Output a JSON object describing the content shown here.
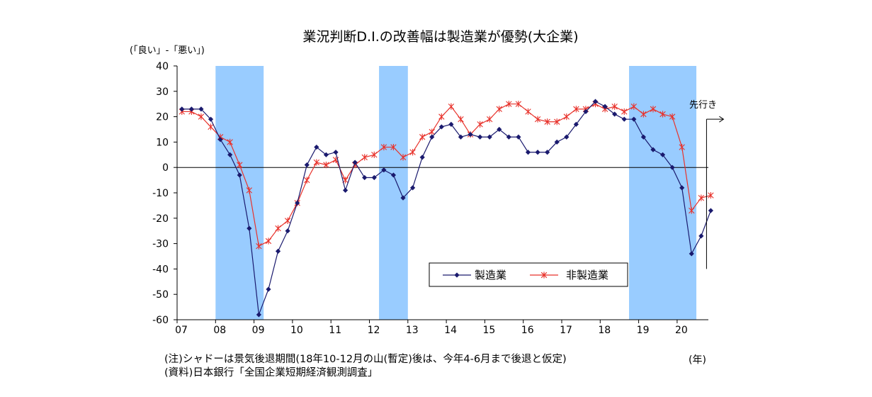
{
  "chart_data": {
    "type": "line",
    "title": "業況判断D.I.の改善幅は製造業が優勢(大企業)",
    "ylabel": "(「良い」-「悪い」)",
    "xunit": "(年)",
    "ylim": [
      -60,
      40
    ],
    "yticks": [
      40,
      30,
      20,
      10,
      0,
      -10,
      -20,
      -30,
      -40,
      -50,
      -60
    ],
    "xtick_labels": [
      "07",
      "08",
      "09",
      "10",
      "11",
      "12",
      "13",
      "14",
      "15",
      "16",
      "17",
      "18",
      "19",
      "20"
    ],
    "forecast_label": "先行き",
    "recession_shading": [
      {
        "start": "2008Q1",
        "end": "2009Q1"
      },
      {
        "start": "2012Q2",
        "end": "2012Q4"
      },
      {
        "start": "2018Q4",
        "end": "2020Q2"
      }
    ],
    "x": [
      "2007Q1",
      "2007Q2",
      "2007Q3",
      "2007Q4",
      "2008Q1",
      "2008Q2",
      "2008Q3",
      "2008Q4",
      "2009Q1",
      "2009Q2",
      "2009Q3",
      "2009Q4",
      "2010Q1",
      "2010Q2",
      "2010Q3",
      "2010Q4",
      "2011Q1",
      "2011Q2",
      "2011Q3",
      "2011Q4",
      "2012Q1",
      "2012Q2",
      "2012Q3",
      "2012Q4",
      "2013Q1",
      "2013Q2",
      "2013Q3",
      "2013Q4",
      "2014Q1",
      "2014Q2",
      "2014Q3",
      "2014Q4",
      "2015Q1",
      "2015Q2",
      "2015Q3",
      "2015Q4",
      "2016Q1",
      "2016Q2",
      "2016Q3",
      "2016Q4",
      "2017Q1",
      "2017Q2",
      "2017Q3",
      "2017Q4",
      "2018Q1",
      "2018Q2",
      "2018Q3",
      "2018Q4",
      "2019Q1",
      "2019Q2",
      "2019Q3",
      "2019Q4",
      "2020Q1",
      "2020Q2",
      "2020Q3",
      "2020Q4"
    ],
    "series": [
      {
        "name": "製造業",
        "color": "#1a1a6e",
        "marker": "diamond",
        "values": [
          23,
          23,
          23,
          19,
          11,
          5,
          -3,
          -24,
          -58,
          -48,
          -33,
          -25,
          -14,
          1,
          8,
          5,
          6,
          -9,
          2,
          -4,
          -4,
          -1,
          -3,
          -12,
          -8,
          4,
          12,
          16,
          17,
          12,
          13,
          12,
          12,
          15,
          12,
          12,
          6,
          6,
          6,
          10,
          12,
          17,
          22,
          26,
          24,
          21,
          19,
          19,
          12,
          7,
          5,
          0,
          -8,
          -34,
          -27,
          -17
        ]
      },
      {
        "name": "非製造業",
        "color": "#e8322b",
        "marker": "asterisk",
        "values": [
          22,
          22,
          20,
          16,
          12,
          10,
          1,
          -9,
          -31,
          -29,
          -24,
          -21,
          -14,
          -5,
          2,
          1,
          3,
          -5,
          1,
          4,
          5,
          8,
          8,
          4,
          6,
          12,
          14,
          20,
          24,
          19,
          13,
          17,
          19,
          23,
          25,
          25,
          22,
          19,
          18,
          18,
          20,
          23,
          23,
          25,
          23,
          24,
          22,
          24,
          21,
          23,
          21,
          20,
          8,
          -17,
          -12,
          -11
        ]
      }
    ],
    "notes": [
      "(注)シャドーは景気後退期間(18年10-12月の山(暫定)後は、今年4-6月まで後退と仮定)",
      "(資料)日本銀行「全国企業短期経済観測調査」"
    ],
    "colors": {
      "shade": "#99ccff",
      "axis": "#000000"
    }
  }
}
